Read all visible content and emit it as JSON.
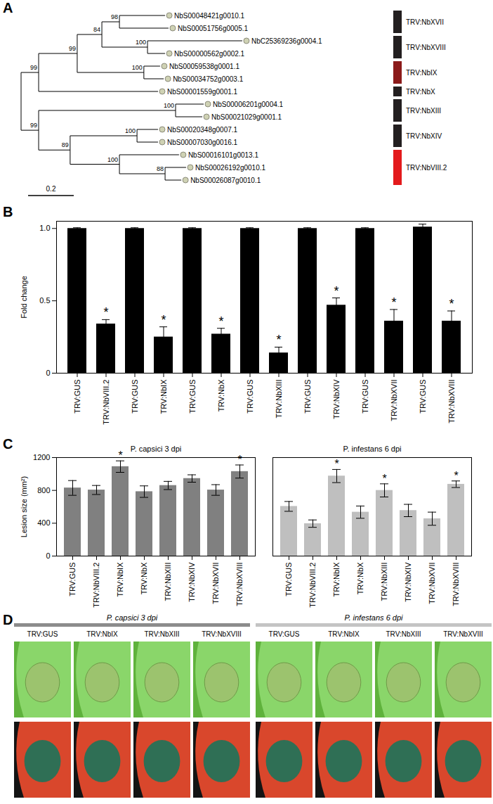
{
  "tree": {
    "panel": "A",
    "scale_bar": 0.2,
    "root": {
      "depth": 0,
      "children": [
        {
          "depth": 0.077,
          "support": 99,
          "children": [
            {
              "depth": 0.246,
              "support": 99,
              "children": [
                {
                  "depth": 0.354,
                  "support": 84,
                  "children": [
                    {
                      "depth": 0.431,
                      "support": 98,
                      "children": [
                        {
                          "label": "NbS00048421g0010.1",
                          "depth": 0.631
                        },
                        {
                          "label": "NbS00051756g0005.1",
                          "depth": 0.646
                        }
                      ]
                    },
                    {
                      "depth": 0.554,
                      "support": 100,
                      "children": [
                        {
                          "label": "NbC25369236g0004.1",
                          "depth": 0.969
                        },
                        {
                          "label": "NbS00000562g0002.1",
                          "depth": 0.631
                        }
                      ]
                    }
                  ]
                },
                {
                  "depth": 0.538,
                  "support": 100,
                  "children": [
                    {
                      "label": "NbS00059538g0001.1",
                      "depth": 0.609
                    },
                    {
                      "label": "NbS00034752g0003.1",
                      "depth": 0.625
                    }
                  ]
                }
              ]
            },
            {
              "label": "NbS00001559g0001.1",
              "depth": 0.6
            }
          ]
        },
        {
          "depth": 0.077,
          "support": 99,
          "children": [
            {
              "depth": 0.677,
              "support": 100,
              "children": [
                {
                  "label": "NbS00006201g0004.1",
                  "depth": 0.8
                },
                {
                  "label": "NbS00021029g0001.1",
                  "depth": 0.794
                }
              ]
            },
            {
              "depth": 0.215,
              "support": 89,
              "children": [
                {
                  "depth": 0.508,
                  "support": 100,
                  "children": [
                    {
                      "label": "NbS00020348g0007.1",
                      "depth": 0.6
                    },
                    {
                      "label": "NbS00007030g0016.1",
                      "depth": 0.6
                    }
                  ]
                },
                {
                  "depth": 0.431,
                  "support": 100,
                  "children": [
                    {
                      "label": "NbS00016101g0013.1",
                      "depth": 0.692
                    },
                    {
                      "depth": 0.631,
                      "support": 88,
                      "children": [
                        {
                          "label": "NbS00026192g0010.1",
                          "depth": 0.723
                        },
                        {
                          "label": "NbS00026087g0010.1",
                          "depth": 0.702
                        }
                      ]
                    }
                  ]
                }
              ]
            }
          ]
        }
      ]
    },
    "groups": [
      {
        "label": "TRV:NbXVII",
        "color": "#231f20",
        "leaves": [
          "NbS00048421g0010.1",
          "NbS00051756g0005.1"
        ]
      },
      {
        "label": "TRV:NbXVIII",
        "color": "#231f20",
        "leaves": [
          "NbC25369236g0004.1",
          "NbS00000562g0002.1"
        ]
      },
      {
        "label": "TRV:NbIX",
        "color": "#8b1a1a",
        "leaves": [
          "NbS00059538g0001.1",
          "NbS00034752g0003.1"
        ]
      },
      {
        "label": "TRV:NbX",
        "color": "#231f20",
        "leaves": [
          "NbS00001559g0001.1"
        ]
      },
      {
        "label": "TRV:NbXIII",
        "color": "#231f20",
        "leaves": [
          "NbS00006201g0004.1",
          "NbS00021029g0001.1"
        ]
      },
      {
        "label": "TRV:NbXIV",
        "color": "#231f20",
        "leaves": [
          "NbS00020348g0007.1",
          "NbS00007030g0016.1"
        ]
      },
      {
        "label": "TRV:NbVIII.2",
        "color": "#e31a1c",
        "leaves": [
          "NbS00016101g0013.1",
          "NbS00026192g0010.1",
          "NbS00026087g0010.1"
        ]
      }
    ]
  },
  "chart_data": [
    {
      "panel": "B",
      "type": "bar",
      "ylabel": "Fold change",
      "categories": [
        "TRV:GUS",
        "TRV:NbVIII.2",
        "TRV:GUS",
        "TRV:NbIX",
        "TRV:GUS",
        "TRV:NbX",
        "TRV:GUS",
        "TRV:NbXIII",
        "TRV:GUS",
        "TRV:NbXIV",
        "TRV:GUS",
        "TRV:NbXVII",
        "TRV:GUS",
        "TRV:NbXVIII"
      ],
      "values": [
        1.0,
        0.34,
        1.0,
        0.25,
        1.0,
        0.27,
        1.0,
        0.14,
        1.0,
        0.47,
        1.0,
        0.36,
        1.01,
        0.36
      ],
      "errors": [
        0.005,
        0.03,
        0.005,
        0.07,
        0.005,
        0.04,
        0.005,
        0.04,
        0.005,
        0.05,
        0.005,
        0.08,
        0.02,
        0.07
      ],
      "annotations": [
        null,
        "*",
        null,
        "*",
        null,
        "*",
        null,
        "*",
        null,
        "*",
        null,
        "*",
        null,
        "*"
      ],
      "color": "#000000",
      "ylim": [
        0,
        1.05
      ],
      "yticks": [
        0,
        0.5,
        {
          "value": 1,
          "label": "1.0"
        }
      ]
    },
    {
      "panel": "C",
      "type": "bar",
      "ylabel": "Lesion size (mm²)",
      "categories": [
        "TRV:GUS",
        "TRV:NbVIII.2",
        "TRV:NbIX",
        "TRV:NbX",
        "TRV:NbXIII",
        "TRV:NbXIV",
        "TRV:NbXVII",
        "TRV:NbXVIII"
      ],
      "ylim": [
        0,
        1200
      ],
      "yticks": [
        0,
        400,
        800,
        1200
      ],
      "series": [
        {
          "name": "P. capsici 3 dpi",
          "color": "#808080",
          "values": [
            830,
            805,
            1090,
            785,
            860,
            945,
            805,
            1030
          ],
          "errors": [
            90,
            55,
            70,
            70,
            50,
            45,
            65,
            80
          ],
          "annotations": [
            null,
            null,
            "*",
            null,
            null,
            null,
            null,
            "*"
          ]
        },
        {
          "name": "P. infestans 6 dpi",
          "color": "#bfbfbf",
          "values": [
            605,
            395,
            975,
            535,
            800,
            555,
            455,
            875
          ],
          "errors": [
            60,
            45,
            80,
            75,
            80,
            75,
            80,
            40
          ],
          "annotations": [
            null,
            null,
            "*",
            null,
            "*",
            null,
            null,
            "*"
          ]
        }
      ]
    }
  ],
  "images": {
    "panel": "D",
    "groups": [
      {
        "title": "P. capsici 3 dpi",
        "images": [
          "TRV:GUS",
          "TRV:NbIX",
          "TRV:NbXIII",
          "TRV:NbXVIII"
        ]
      },
      {
        "title": "P. infestans 6 dpi",
        "images": [
          "TRV:GUS",
          "TRV:NbIX",
          "TRV:NbXIII",
          "TRV:NbXVIII"
        ]
      }
    ]
  }
}
